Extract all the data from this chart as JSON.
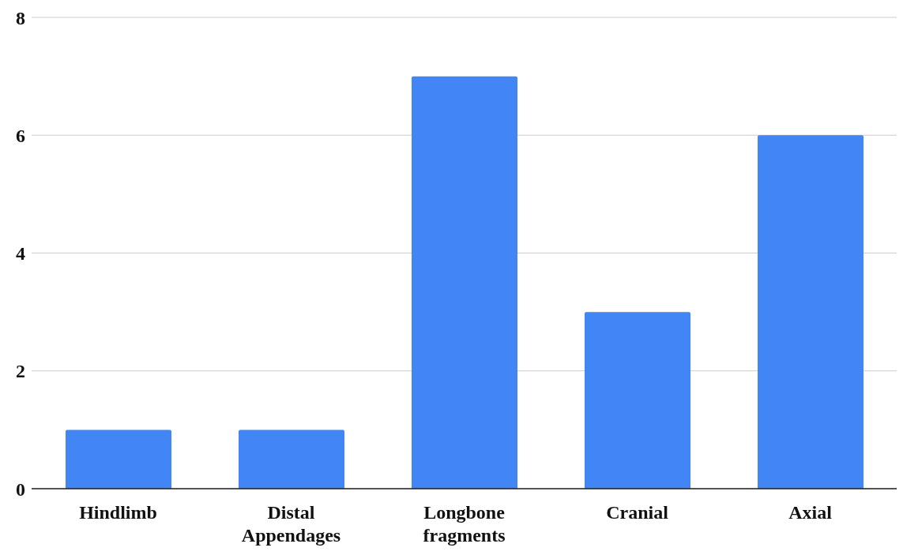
{
  "chart_data": {
    "type": "bar",
    "categories": [
      "Hindlimb",
      "Distal Appendages",
      "Longbone fragments",
      "Cranial",
      "Axial"
    ],
    "values": [
      1,
      1,
      7,
      3,
      6
    ],
    "color": "#4285f4",
    "ylim": [
      0,
      8
    ],
    "yticks": [
      0,
      2,
      4,
      6,
      8
    ],
    "grid": "y"
  }
}
